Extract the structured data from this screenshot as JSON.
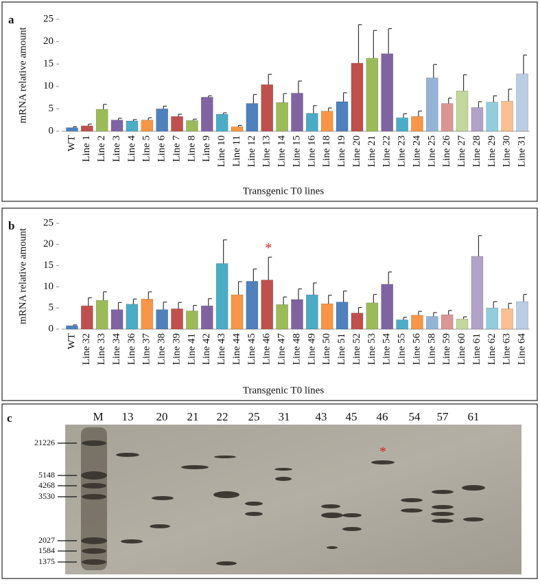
{
  "chart_data": [
    {
      "type": "bar",
      "panel_label": "a",
      "x_label": "Transgenic T0 lines",
      "y_label": "mRNA relative amount",
      "categories": [
        "WT",
        "Line 1",
        "Line 2",
        "Line 3",
        "Line 4",
        "Line 5",
        "Line 6",
        "Line 7",
        "Line 8",
        "Line 9",
        "Line 10",
        "Line 11",
        "Line 12",
        "Line 13",
        "Line 14",
        "Line 15",
        "Line 16",
        "Line 18",
        "Line 19",
        "Line 20",
        "Line 21",
        "Line 22",
        "Line 23",
        "Line 24",
        "Line 25",
        "Line 26",
        "Line 27",
        "Line 28",
        "Line 29",
        "Line 30",
        "Line 31"
      ],
      "values": [
        0.8,
        1.2,
        4.9,
        2.5,
        2.3,
        2.5,
        5.0,
        3.3,
        2.4,
        7.6,
        3.8,
        1.0,
        6.2,
        10.4,
        6.4,
        8.5,
        4.0,
        4.5,
        6.6,
        15.2,
        16.3,
        17.3,
        3.0,
        3.3,
        11.9,
        6.2,
        9.0,
        5.3,
        6.5,
        6.7,
        12.8
      ],
      "errors": [
        0.2,
        0.4,
        1.1,
        0.4,
        0.3,
        0.5,
        0.6,
        0.5,
        0.3,
        0.3,
        0.3,
        0.3,
        2.0,
        2.3,
        2.0,
        2.7,
        1.7,
        0.7,
        2.0,
        8.6,
        6.2,
        5.6,
        0.9,
        1.2,
        3.0,
        1.2,
        3.6,
        1.3,
        1.4,
        2.7,
        4.2
      ],
      "colors": [
        "#4f81bd",
        "#c0504d",
        "#9bbb59",
        "#8064a2",
        "#4bacc6",
        "#f79646",
        "#4f81bd",
        "#c0504d",
        "#9bbb59",
        "#8064a2",
        "#4bacc6",
        "#f79646",
        "#4f81bd",
        "#c0504d",
        "#9bbb59",
        "#8064a2",
        "#4bacc6",
        "#f79646",
        "#4f81bd",
        "#c0504d",
        "#9bbb59",
        "#8064a2",
        "#4bacc6",
        "#f79646",
        "#95b3d7",
        "#da9694",
        "#c3d69b",
        "#b3a2c7",
        "#93cddd",
        "#fac090",
        "#b9cde5"
      ],
      "ylim": [
        0,
        25
      ],
      "yticks": [
        0,
        5,
        10,
        15,
        20,
        25
      ]
    },
    {
      "type": "bar",
      "panel_label": "b",
      "x_label": "Transgenic T0 lines",
      "y_label": "mRNA relative amount",
      "categories": [
        "WT",
        "Line 32",
        "Line 33",
        "Line 34",
        "Line 36",
        "Line 37",
        "Line 38",
        "Line 39",
        "Line 41",
        "Line 42",
        "Line 43",
        "Line 44",
        "Line 45",
        "Line 46",
        "Line 47",
        "Line 48",
        "Line 49",
        "Line 50",
        "Line 51",
        "Line 52",
        "Line 53",
        "Line 54",
        "Line 55",
        "Line 56",
        "Line 58",
        "Line 59",
        "Line 60",
        "Line 61",
        "Line 62",
        "Line 63",
        "Line 64"
      ],
      "values": [
        0.8,
        5.5,
        6.8,
        4.6,
        5.9,
        7.1,
        4.6,
        4.8,
        4.3,
        5.5,
        15.5,
        8.1,
        11.3,
        11.6,
        5.8,
        7.0,
        8.1,
        6.0,
        6.4,
        3.8,
        6.2,
        10.6,
        2.2,
        3.3,
        3.0,
        3.4,
        2.4,
        17.2,
        5.0,
        4.8,
        6.5
      ],
      "errors": [
        0.2,
        1.9,
        2.0,
        1.7,
        1.2,
        1.7,
        1.8,
        1.5,
        1.3,
        1.7,
        5.6,
        3.1,
        2.9,
        5.4,
        1.8,
        2.5,
        2.8,
        2.0,
        2.6,
        1.3,
        2.0,
        2.9,
        0.6,
        0.9,
        0.9,
        1.0,
        0.5,
        4.9,
        1.5,
        1.3,
        1.7
      ],
      "colors": [
        "#4f81bd",
        "#c0504d",
        "#9bbb59",
        "#8064a2",
        "#4bacc6",
        "#f79646",
        "#4f81bd",
        "#c0504d",
        "#9bbb59",
        "#8064a2",
        "#4bacc6",
        "#f79646",
        "#4f81bd",
        "#c0504d",
        "#9bbb59",
        "#8064a2",
        "#4bacc6",
        "#f79646",
        "#4f81bd",
        "#c0504d",
        "#9bbb59",
        "#8064a2",
        "#4bacc6",
        "#f79646",
        "#95b3d7",
        "#da9694",
        "#c3d69b",
        "#b3a2c7",
        "#93cddd",
        "#fac090",
        "#b9cde5"
      ],
      "ylim": [
        0,
        25
      ],
      "yticks": [
        0,
        5,
        10,
        15,
        20,
        25
      ],
      "annotations": [
        {
          "text": "*",
          "x": "Line 46"
        }
      ]
    }
  ],
  "blot": {
    "panel_label": "c",
    "lanes": [
      "M",
      "13",
      "20",
      "21",
      "22",
      "25",
      "31",
      "43",
      "45",
      "46",
      "54",
      "57",
      "61"
    ],
    "markers": [
      21226,
      5148,
      4268,
      3530,
      2027,
      1584,
      1375
    ],
    "annotation": "*"
  }
}
